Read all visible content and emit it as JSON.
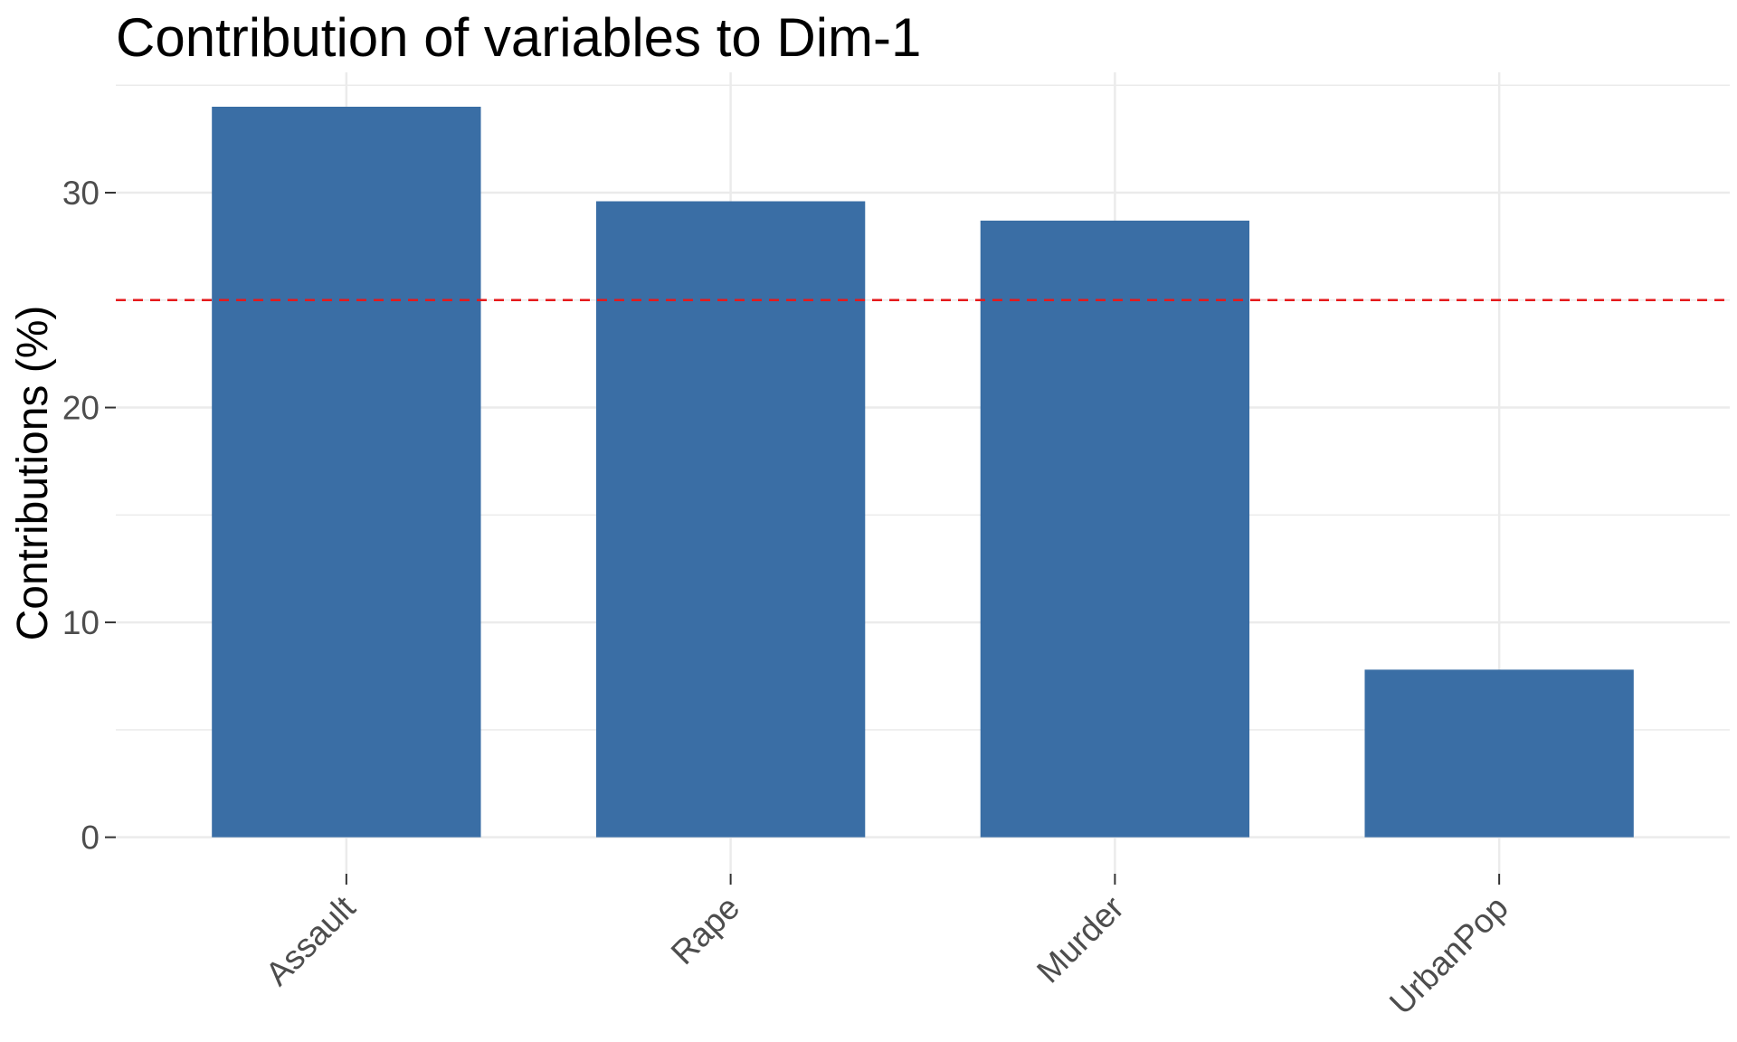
{
  "chart_data": {
    "type": "bar",
    "title": "Contribution of variables to Dim-1",
    "xlabel": "",
    "ylabel": "Contributions (%)",
    "categories": [
      "Assault",
      "Rape",
      "Murder",
      "UrbanPop"
    ],
    "values": [
      34.0,
      29.6,
      28.7,
      7.8
    ],
    "ylim": [
      -1.7,
      35.6
    ],
    "yticks": [
      0,
      10,
      20,
      30
    ],
    "ytick_labels": [
      "0",
      "10",
      "20",
      "30"
    ],
    "reference_line": {
      "value": 25,
      "style": "dashed",
      "color": "#e41a1c"
    },
    "bar_color": "#3a6ea5",
    "grid": true,
    "grid_color": "#ebebeb",
    "legend": "none"
  }
}
